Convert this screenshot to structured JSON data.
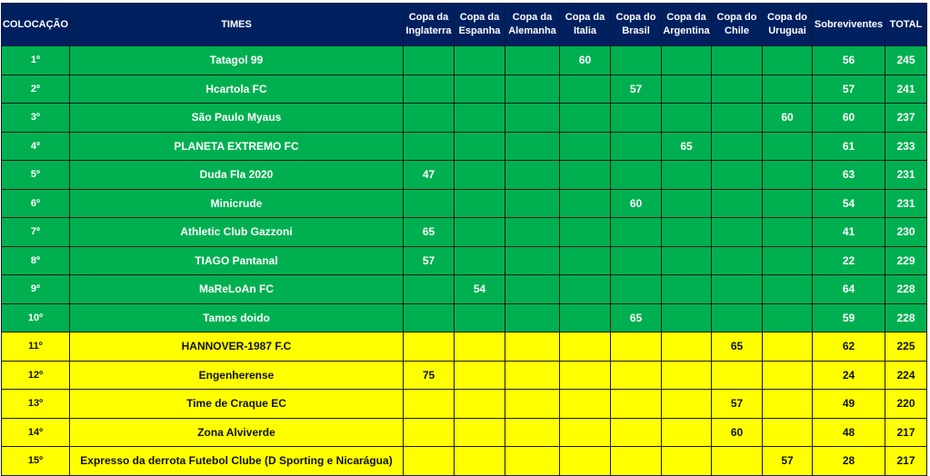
{
  "colors": {
    "header": "#002060",
    "top10": "#00b050",
    "rest": "#ffff00"
  },
  "headers": [
    "COLOCAÇÃO",
    "TIMES",
    "Copa da Inglaterra",
    "Copa da Espanha",
    "Copa da Alemanha",
    "Copa da Italia",
    "Copa do Brasil",
    "Copa da Argentina",
    "Copa do Chile",
    "Copa do Uruguai",
    "Sobreviventes",
    "TOTAL"
  ],
  "rows": [
    {
      "pos": "1º",
      "team": "Tatagol 99",
      "cups": [
        "",
        "",
        "",
        "60",
        "",
        "",
        "",
        ""
      ],
      "surv": "56",
      "total": "245",
      "zone": "green"
    },
    {
      "pos": "2º",
      "team": "Hcartola FC",
      "cups": [
        "",
        "",
        "",
        "",
        "57",
        "",
        "",
        ""
      ],
      "surv": "57",
      "total": "241",
      "zone": "green"
    },
    {
      "pos": "3º",
      "team": "São Paulo Myaus",
      "cups": [
        "",
        "",
        "",
        "",
        "",
        "",
        "",
        "60"
      ],
      "surv": "60",
      "total": "237",
      "zone": "green"
    },
    {
      "pos": "4º",
      "team": "PLANETA EXTREMO FC",
      "cups": [
        "",
        "",
        "",
        "",
        "",
        "65",
        "",
        ""
      ],
      "surv": "61",
      "total": "233",
      "zone": "green"
    },
    {
      "pos": "5º",
      "team": "Duda Fla 2020",
      "cups": [
        "47",
        "",
        "",
        "",
        "",
        "",
        "",
        ""
      ],
      "surv": "63",
      "total": "231",
      "zone": "green"
    },
    {
      "pos": "6º",
      "team": "Minicrude",
      "cups": [
        "",
        "",
        "",
        "",
        "60",
        "",
        "",
        ""
      ],
      "surv": "54",
      "total": "231",
      "zone": "green"
    },
    {
      "pos": "7º",
      "team": "Athletic Club Gazzoni",
      "cups": [
        "65",
        "",
        "",
        "",
        "",
        "",
        "",
        ""
      ],
      "surv": "41",
      "total": "230",
      "zone": "green"
    },
    {
      "pos": "8º",
      "team": "TIAGO Pantanal",
      "cups": [
        "57",
        "",
        "",
        "",
        "",
        "",
        "",
        ""
      ],
      "surv": "22",
      "total": "229",
      "zone": "green"
    },
    {
      "pos": "9º",
      "team": "MaReLoAn FC",
      "cups": [
        "",
        "54",
        "",
        "",
        "",
        "",
        "",
        ""
      ],
      "surv": "64",
      "total": "228",
      "zone": "green"
    },
    {
      "pos": "10º",
      "team": "Tamos doido",
      "cups": [
        "",
        "",
        "",
        "",
        "65",
        "",
        "",
        ""
      ],
      "surv": "59",
      "total": "228",
      "zone": "green"
    },
    {
      "pos": "11º",
      "team": "HANNOVER-1987 F.C",
      "cups": [
        "",
        "",
        "",
        "",
        "",
        "",
        "65",
        ""
      ],
      "surv": "62",
      "total": "225",
      "zone": "yellow"
    },
    {
      "pos": "12º",
      "team": "Engenherense",
      "cups": [
        "75",
        "",
        "",
        "",
        "",
        "",
        "",
        ""
      ],
      "surv": "24",
      "total": "224",
      "zone": "yellow"
    },
    {
      "pos": "13º",
      "team": "Time de Craque EC",
      "cups": [
        "",
        "",
        "",
        "",
        "",
        "",
        "57",
        ""
      ],
      "surv": "49",
      "total": "220",
      "zone": "yellow"
    },
    {
      "pos": "14º",
      "team": "Zona Alviverde",
      "cups": [
        "",
        "",
        "",
        "",
        "",
        "",
        "60",
        ""
      ],
      "surv": "48",
      "total": "217",
      "zone": "yellow"
    },
    {
      "pos": "15º",
      "team": "Expresso da derrota Futebol Clube (D Sporting e Nicarágua)",
      "cups": [
        "",
        "",
        "",
        "",
        "",
        "",
        "",
        "57"
      ],
      "surv": "28",
      "total": "217",
      "zone": "yellow"
    }
  ]
}
